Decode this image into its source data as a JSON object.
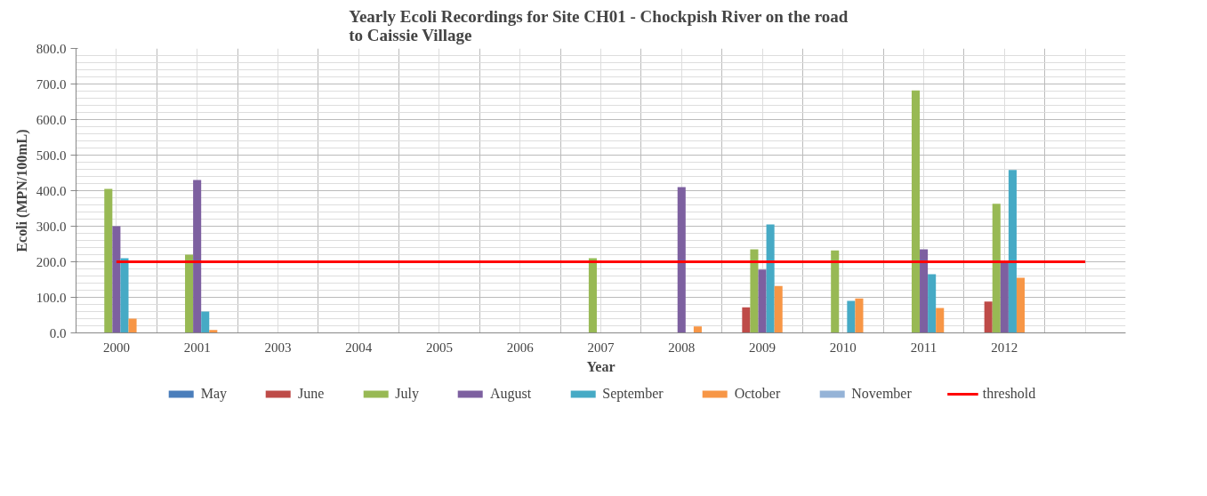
{
  "chart_data": {
    "type": "bar",
    "title": "Yearly Ecoli Recordings for Site  CH01 - Chockpish River on the road to Caissie Village",
    "xlabel": "Year",
    "ylabel": "Ecoli (MPN/100mL)",
    "categories": [
      "2000",
      "2001",
      "2003",
      "2004",
      "2005",
      "2006",
      "2007",
      "2008",
      "2009",
      "2010",
      "2011",
      "2012",
      null
    ],
    "series": [
      {
        "name": "May",
        "color": "#4a7ebb",
        "values": [
          null,
          null,
          null,
          null,
          null,
          null,
          null,
          null,
          null,
          null,
          null,
          null,
          null
        ]
      },
      {
        "name": "June",
        "color": "#be4b48",
        "values": [
          null,
          null,
          null,
          null,
          null,
          null,
          null,
          null,
          72,
          null,
          null,
          88,
          null
        ]
      },
      {
        "name": "July",
        "color": "#98b954",
        "values": [
          405,
          220,
          null,
          null,
          null,
          null,
          210,
          null,
          235,
          232,
          682,
          363,
          null
        ]
      },
      {
        "name": "August",
        "color": "#7d60a0",
        "values": [
          300,
          430,
          null,
          null,
          null,
          null,
          null,
          410,
          178,
          null,
          235,
          200,
          null
        ]
      },
      {
        "name": "September",
        "color": "#46aac5",
        "values": [
          210,
          60,
          null,
          null,
          null,
          null,
          null,
          null,
          305,
          90,
          165,
          458,
          null
        ]
      },
      {
        "name": "October",
        "color": "#f79646",
        "values": [
          40,
          8,
          null,
          null,
          null,
          null,
          null,
          18,
          132,
          97,
          70,
          155,
          null
        ]
      },
      {
        "name": "November",
        "color": "#95b3d7",
        "values": [
          null,
          null,
          null,
          null,
          null,
          null,
          null,
          null,
          null,
          null,
          null,
          null,
          null
        ]
      },
      {
        "name": "threshold",
        "type": "line",
        "color": "#ff0000",
        "values": [
          200,
          200,
          200,
          200,
          200,
          200,
          200,
          200,
          200,
          200,
          200,
          200,
          200
        ]
      }
    ],
    "ylim": [
      0,
      800
    ],
    "yticks": [
      {
        "value": 0,
        "label": "0.0"
      },
      {
        "value": 100,
        "label": "100.0"
      },
      {
        "value": 200,
        "label": "200.0"
      },
      {
        "value": 300,
        "label": "300.0"
      },
      {
        "value": 400,
        "label": "400.0"
      },
      {
        "value": 500,
        "label": "500.0"
      },
      {
        "value": 600,
        "label": "600.0"
      },
      {
        "value": 700,
        "label": "700.0"
      },
      {
        "value": 800,
        "label": "800.0"
      }
    ],
    "grid": true,
    "legend": "bottom"
  }
}
